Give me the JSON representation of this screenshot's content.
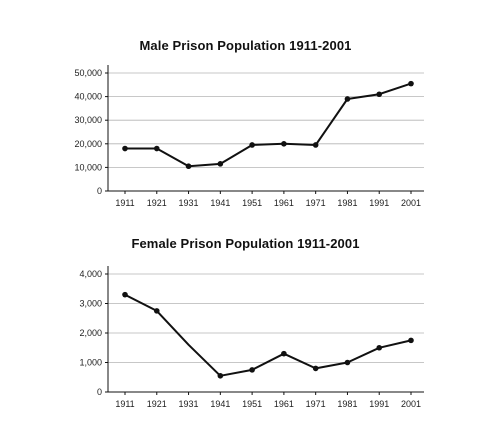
{
  "chart_data": [
    {
      "type": "line",
      "title": "Male Prison Population 1911-2001",
      "xlabel": "",
      "ylabel": "",
      "categories": [
        "1911",
        "1921",
        "1931",
        "1941",
        "1951",
        "1961",
        "1971",
        "1981",
        "1991",
        "2001"
      ],
      "series": [
        {
          "values": [
            18000,
            18000,
            10500,
            11500,
            19500,
            20000,
            19500,
            39000,
            41000,
            45500
          ]
        }
      ],
      "ylim": [
        0,
        50000
      ],
      "yticks": [
        0,
        10000,
        20000,
        30000,
        40000,
        50000
      ],
      "ytick_labels": [
        "0",
        "10,000",
        "20,000",
        "30,000",
        "40,000",
        "50,000"
      ],
      "grid": true,
      "legend": "none",
      "line_color": "#111111",
      "grid_color": "#b5b5b5"
    },
    {
      "type": "line",
      "title": "Female Prison Population 1911-2001",
      "xlabel": "",
      "ylabel": "",
      "categories": [
        "1911",
        "1921",
        "1931",
        "1941",
        "1951",
        "1961",
        "1971",
        "1981",
        "1991",
        "2001"
      ],
      "series": [
        {
          "values": [
            3300,
            2750,
            1600,
            550,
            750,
            1300,
            800,
            1000,
            1500,
            1750
          ]
        }
      ],
      "marker_mask": [
        true,
        true,
        false,
        true,
        true,
        true,
        true,
        true,
        true,
        true
      ],
      "ylim": [
        0,
        4000
      ],
      "yticks": [
        0,
        1000,
        2000,
        3000,
        4000
      ],
      "ytick_labels": [
        "0",
        "1,000",
        "2,000",
        "3,000",
        "4,000"
      ],
      "grid": true,
      "legend": "none",
      "line_color": "#111111",
      "grid_color": "#b5b5b5"
    }
  ]
}
